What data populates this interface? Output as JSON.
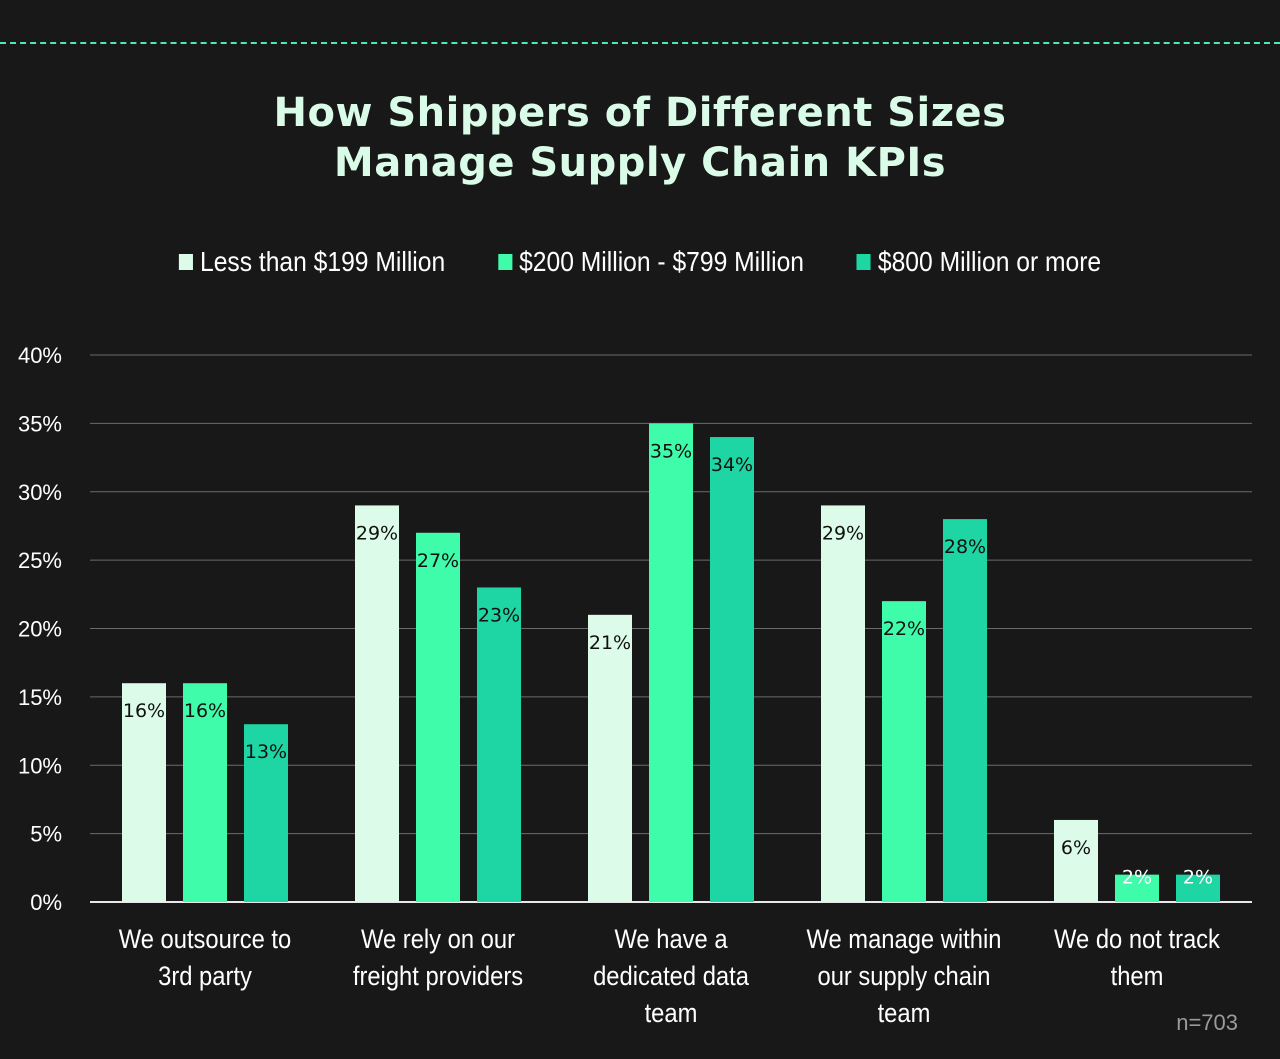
{
  "chart_data": {
    "type": "bar",
    "title_lines": [
      "How Shippers of Different Sizes",
      "Manage Supply Chain KPIs"
    ],
    "categories": [
      [
        "We outsource to",
        "3rd party"
      ],
      [
        "We rely on our",
        "freight providers"
      ],
      [
        "We have a",
        "dedicated data",
        "team"
      ],
      [
        "We manage within",
        "our supply chain",
        "team"
      ],
      [
        "We do not track",
        "them"
      ]
    ],
    "series": [
      {
        "name": "Less than $199 Million",
        "color": "#dcfce9",
        "values": [
          16,
          29,
          21,
          29,
          6
        ]
      },
      {
        "name": "$200 Million - $799 Million",
        "color": "#3ffcaa",
        "values": [
          16,
          27,
          35,
          22,
          2
        ]
      },
      {
        "name": "$800 Million or more",
        "color": "#1dd6a3",
        "values": [
          13,
          23,
          34,
          28,
          2
        ]
      }
    ],
    "yticks": [
      "0%",
      "5%",
      "10%",
      "15%",
      "20%",
      "25%",
      "30%",
      "35%",
      "40%"
    ],
    "ylim": [
      0,
      40
    ],
    "grid": true,
    "legend_position": "top",
    "note": "n=703",
    "background": "#181818"
  }
}
